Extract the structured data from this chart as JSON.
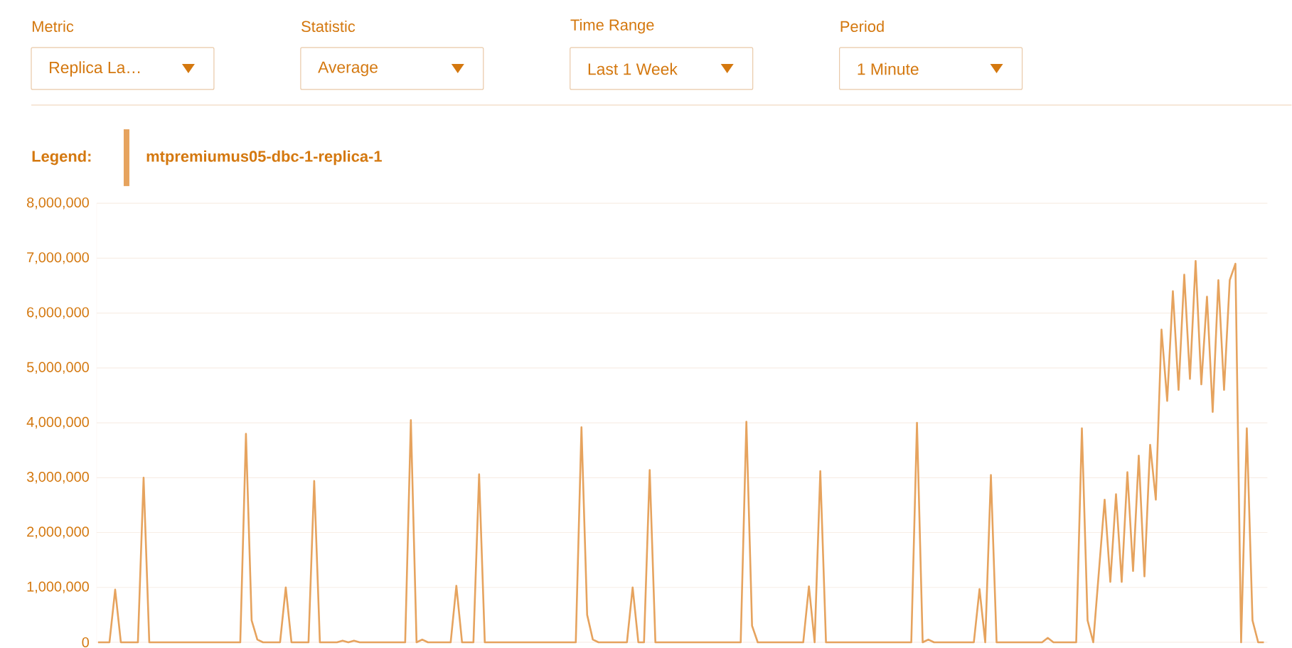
{
  "chart_data": {
    "type": "line",
    "annotations": [
      "Metric",
      "Replica La…",
      "Statistic",
      "Average",
      "Time Range",
      "Last 1 Week",
      "Period",
      "1 Minute"
    ],
    "legend_title": "Legend:",
    "legend": "top left",
    "tick_labels": "y",
    "grid": "y",
    "categories": [
      null,
      null,
      null,
      null,
      null,
      null,
      null,
      null,
      null,
      null,
      null,
      null,
      null,
      null,
      null,
      null,
      null,
      null,
      null,
      null,
      null,
      null,
      null,
      null,
      null,
      null,
      null,
      null,
      null,
      null,
      null,
      null,
      null,
      null,
      null,
      null,
      null,
      null,
      null,
      null,
      null,
      null,
      null,
      null,
      null,
      null,
      null,
      null,
      null,
      null,
      null,
      null,
      null,
      null,
      null,
      null,
      null,
      null,
      null,
      null,
      null,
      null,
      null,
      null,
      null,
      null,
      null,
      null,
      null,
      null,
      null,
      null,
      null,
      null,
      null,
      null,
      null,
      null,
      null,
      null,
      null,
      null,
      null,
      null,
      null,
      null,
      null,
      null,
      null,
      null,
      null,
      null,
      null,
      null,
      null,
      null,
      null,
      null,
      null,
      null,
      null,
      null,
      null,
      null,
      null,
      null,
      null,
      null,
      null,
      null,
      null,
      null,
      null,
      null,
      null,
      null,
      null,
      null,
      null,
      null,
      null,
      null,
      null,
      null,
      null,
      null,
      null,
      null,
      null,
      null,
      null,
      null,
      null,
      null,
      null,
      null,
      null,
      null,
      null,
      null,
      null,
      null,
      null,
      null,
      null,
      null,
      null,
      null,
      null,
      null,
      null,
      null,
      null,
      null,
      null,
      null,
      null,
      null,
      null,
      null,
      null,
      null,
      null,
      null,
      null,
      null,
      null,
      null,
      null,
      null,
      null,
      null,
      null,
      null,
      null,
      null,
      null,
      null,
      null,
      null,
      null,
      null,
      null,
      null,
      null,
      null,
      null,
      null,
      null,
      null,
      null,
      null,
      null,
      null,
      null,
      null,
      null,
      null,
      null,
      null,
      null,
      null,
      null,
      null,
      null,
      null
    ],
    "series": [
      {
        "name": "mtpremiumus05-dbc-1-replica-1",
        "color": "#e6a35e",
        "values": [
          0,
          0,
          0,
          960000,
          0,
          0,
          0,
          0,
          3000000,
          0,
          0,
          0,
          0,
          0,
          0,
          0,
          0,
          0,
          0,
          0,
          0,
          0,
          0,
          0,
          0,
          0,
          3800000,
          400000,
          50000,
          0,
          0,
          0,
          0,
          1000000,
          0,
          0,
          0,
          0,
          2940000,
          0,
          0,
          0,
          0,
          30000,
          0,
          30000,
          0,
          0,
          0,
          0,
          0,
          0,
          0,
          0,
          0,
          4050000,
          0,
          50000,
          0,
          0,
          0,
          0,
          0,
          1030000,
          0,
          0,
          0,
          3060000,
          0,
          0,
          0,
          0,
          0,
          0,
          0,
          0,
          0,
          0,
          0,
          0,
          0,
          0,
          0,
          0,
          0,
          3920000,
          500000,
          50000,
          0,
          0,
          0,
          0,
          0,
          0,
          1000000,
          0,
          0,
          3140000,
          0,
          0,
          0,
          0,
          0,
          0,
          0,
          0,
          0,
          0,
          0,
          0,
          0,
          0,
          0,
          0,
          4020000,
          300000,
          0,
          0,
          0,
          0,
          0,
          0,
          0,
          0,
          0,
          1020000,
          0,
          3120000,
          0,
          0,
          0,
          0,
          0,
          0,
          0,
          0,
          0,
          0,
          0,
          0,
          0,
          0,
          0,
          0,
          4000000,
          0,
          50000,
          0,
          0,
          0,
          0,
          0,
          0,
          0,
          0,
          970000,
          0,
          3050000,
          0,
          0,
          0,
          0,
          0,
          0,
          0,
          0,
          0,
          80000,
          0,
          0,
          0,
          0,
          0,
          3900000,
          400000,
          0,
          1300000,
          2600000,
          1100000,
          2700000,
          1100000,
          3100000,
          1300000,
          3400000,
          1200000,
          3600000,
          2600000,
          5700000,
          4400000,
          6400000,
          4600000,
          6700000,
          4800000,
          6950000,
          4700000,
          6300000,
          4200000,
          6600000,
          4600000,
          6600000,
          6900000,
          0,
          3900000,
          400000,
          0,
          0
        ]
      }
    ],
    "ylim": [
      0,
      8000000
    ],
    "yticks": [
      {
        "value": 0,
        "label": "0"
      },
      {
        "value": 1000000,
        "label": "1,000,000"
      },
      {
        "value": 2000000,
        "label": "2,000,000"
      },
      {
        "value": 3000000,
        "label": "3,000,000"
      },
      {
        "value": 4000000,
        "label": "4,000,000"
      },
      {
        "value": 5000000,
        "label": "5,000,000"
      },
      {
        "value": 6000000,
        "label": "6,000,000"
      },
      {
        "value": 7000000,
        "label": "7,000,000"
      },
      {
        "value": 8000000,
        "label": "8,000,000"
      }
    ]
  }
}
